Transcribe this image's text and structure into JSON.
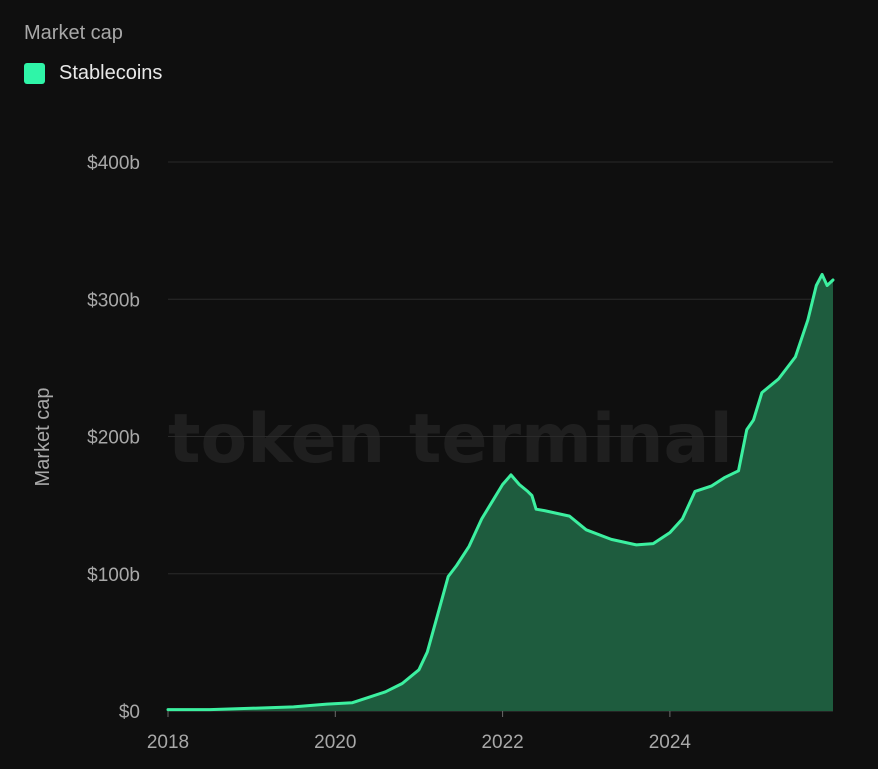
{
  "header": {
    "title": "Market cap"
  },
  "legend": {
    "items": [
      {
        "label": "Stablecoins",
        "color": "#2ff5a8"
      }
    ]
  },
  "watermark": "token terminal_",
  "colors": {
    "line": "#3cf0a0",
    "area": "#1e5c3e",
    "grid": "#2a2a2a",
    "background": "#0f0f0f"
  },
  "chart_data": {
    "type": "area",
    "ylabel": "Market cap",
    "xlabel": "",
    "xlim": [
      2018,
      2025.95
    ],
    "ylim": [
      0,
      400
    ],
    "y_ticks": [
      {
        "value": 0,
        "label": "$0"
      },
      {
        "value": 100,
        "label": "$100b"
      },
      {
        "value": 200,
        "label": "$200b"
      },
      {
        "value": 300,
        "label": "$300b"
      },
      {
        "value": 400,
        "label": "$400b"
      }
    ],
    "x_ticks": [
      {
        "value": 2018,
        "label": "2018"
      },
      {
        "value": 2020,
        "label": "2020"
      },
      {
        "value": 2022,
        "label": "2022"
      },
      {
        "value": 2024,
        "label": "2024"
      }
    ],
    "grid": true,
    "legend_position": "top-left",
    "series": [
      {
        "name": "Stablecoins",
        "x": [
          2018.0,
          2018.5,
          2019.0,
          2019.5,
          2019.9,
          2020.2,
          2020.4,
          2020.6,
          2020.8,
          2021.0,
          2021.1,
          2021.2,
          2021.35,
          2021.45,
          2021.6,
          2021.75,
          2021.9,
          2022.0,
          2022.1,
          2022.2,
          2022.3,
          2022.35,
          2022.4,
          2022.5,
          2022.8,
          2023.0,
          2023.3,
          2023.6,
          2023.8,
          2024.0,
          2024.15,
          2024.3,
          2024.5,
          2024.65,
          2024.82,
          2024.92,
          2025.0,
          2025.1,
          2025.3,
          2025.5,
          2025.65,
          2025.75,
          2025.82,
          2025.88,
          2025.95
        ],
        "y": [
          1,
          1,
          2,
          3,
          5,
          6,
          10,
          14,
          20,
          30,
          43,
          65,
          98,
          106,
          120,
          140,
          155,
          165,
          172,
          165,
          160,
          157,
          147,
          146,
          142,
          132,
          125,
          121,
          122,
          130,
          140,
          160,
          164,
          170,
          175,
          205,
          212,
          232,
          242,
          258,
          285,
          310,
          318,
          310,
          314
        ]
      }
    ]
  }
}
